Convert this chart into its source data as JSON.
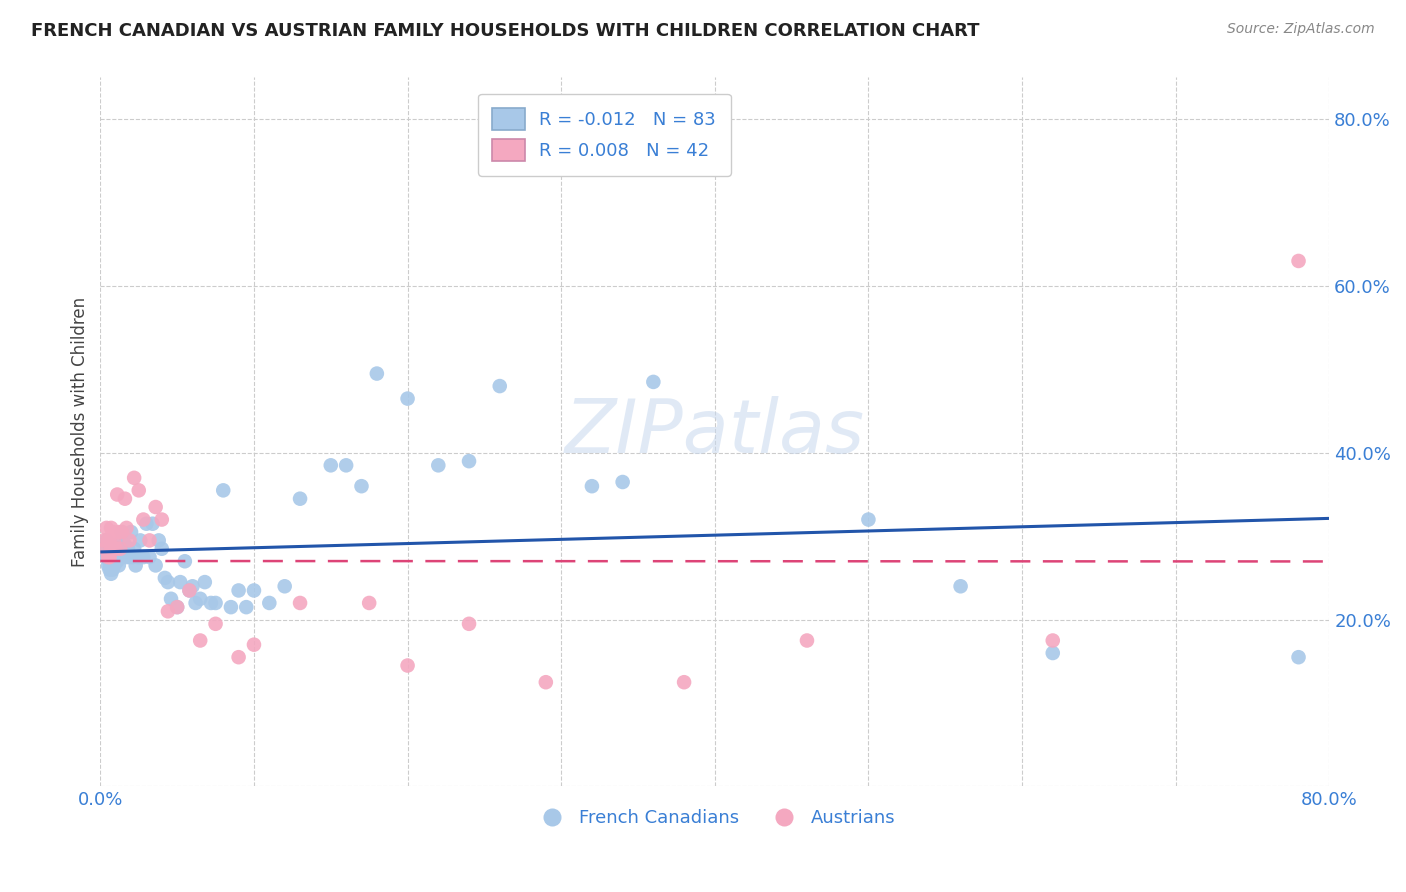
{
  "title": "FRENCH CANADIAN VS AUSTRIAN FAMILY HOUSEHOLDS WITH CHILDREN CORRELATION CHART",
  "source": "Source: ZipAtlas.com",
  "ylabel": "Family Households with Children",
  "blue_R": "-0.012",
  "blue_N": "83",
  "pink_R": "0.008",
  "pink_N": "42",
  "blue_color": "#a8c8e8",
  "pink_color": "#f4a8c0",
  "blue_line_color": "#2255aa",
  "pink_line_color": "#dd4477",
  "watermark": "ZIPatlas",
  "blue_x": [
    0.002,
    0.003,
    0.004,
    0.004,
    0.005,
    0.005,
    0.005,
    0.006,
    0.006,
    0.006,
    0.007,
    0.007,
    0.007,
    0.007,
    0.008,
    0.008,
    0.008,
    0.009,
    0.009,
    0.009,
    0.01,
    0.01,
    0.011,
    0.011,
    0.012,
    0.012,
    0.013,
    0.013,
    0.014,
    0.015,
    0.016,
    0.017,
    0.018,
    0.019,
    0.02,
    0.021,
    0.022,
    0.023,
    0.025,
    0.026,
    0.028,
    0.03,
    0.032,
    0.034,
    0.036,
    0.038,
    0.04,
    0.042,
    0.044,
    0.046,
    0.05,
    0.052,
    0.055,
    0.058,
    0.06,
    0.062,
    0.065,
    0.068,
    0.072,
    0.075,
    0.08,
    0.085,
    0.09,
    0.095,
    0.1,
    0.11,
    0.12,
    0.13,
    0.15,
    0.16,
    0.17,
    0.18,
    0.2,
    0.22,
    0.24,
    0.26,
    0.32,
    0.34,
    0.36,
    0.5,
    0.56,
    0.62,
    0.78
  ],
  "blue_y": [
    0.285,
    0.29,
    0.295,
    0.275,
    0.285,
    0.275,
    0.265,
    0.28,
    0.27,
    0.26,
    0.285,
    0.275,
    0.265,
    0.255,
    0.28,
    0.27,
    0.26,
    0.285,
    0.275,
    0.265,
    0.285,
    0.275,
    0.29,
    0.27,
    0.285,
    0.265,
    0.285,
    0.275,
    0.305,
    0.28,
    0.29,
    0.275,
    0.285,
    0.275,
    0.305,
    0.275,
    0.285,
    0.265,
    0.275,
    0.295,
    0.275,
    0.315,
    0.275,
    0.315,
    0.265,
    0.295,
    0.285,
    0.25,
    0.245,
    0.225,
    0.215,
    0.245,
    0.27,
    0.235,
    0.24,
    0.22,
    0.225,
    0.245,
    0.22,
    0.22,
    0.355,
    0.215,
    0.235,
    0.215,
    0.235,
    0.22,
    0.24,
    0.345,
    0.385,
    0.385,
    0.36,
    0.495,
    0.465,
    0.385,
    0.39,
    0.48,
    0.36,
    0.365,
    0.485,
    0.32,
    0.24,
    0.16,
    0.155
  ],
  "pink_x": [
    0.002,
    0.003,
    0.004,
    0.005,
    0.005,
    0.006,
    0.006,
    0.007,
    0.007,
    0.008,
    0.008,
    0.009,
    0.01,
    0.011,
    0.012,
    0.013,
    0.014,
    0.016,
    0.017,
    0.019,
    0.022,
    0.025,
    0.028,
    0.032,
    0.036,
    0.04,
    0.044,
    0.05,
    0.058,
    0.065,
    0.075,
    0.09,
    0.1,
    0.13,
    0.175,
    0.2,
    0.24,
    0.29,
    0.38,
    0.46,
    0.62,
    0.78
  ],
  "pink_y": [
    0.295,
    0.285,
    0.31,
    0.295,
    0.275,
    0.295,
    0.275,
    0.31,
    0.285,
    0.305,
    0.285,
    0.295,
    0.285,
    0.35,
    0.305,
    0.285,
    0.305,
    0.345,
    0.31,
    0.295,
    0.37,
    0.355,
    0.32,
    0.295,
    0.335,
    0.32,
    0.21,
    0.215,
    0.235,
    0.175,
    0.195,
    0.155,
    0.17,
    0.22,
    0.22,
    0.145,
    0.195,
    0.125,
    0.125,
    0.175,
    0.175,
    0.63
  ]
}
